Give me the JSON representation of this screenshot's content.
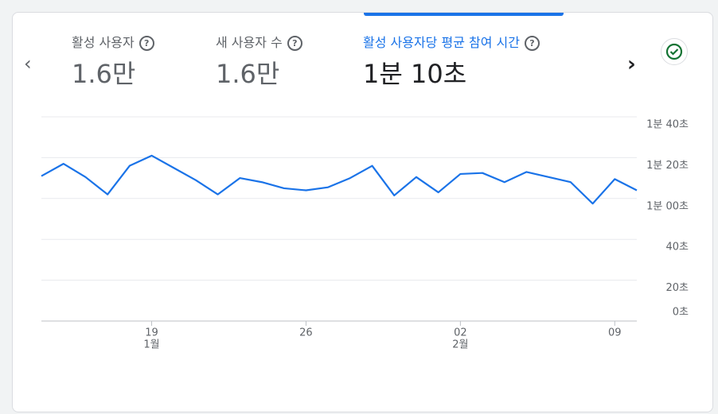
{
  "metrics": [
    {
      "label": "활성 사용자",
      "value": "1.6만"
    },
    {
      "label": "새 사용자 수",
      "value": "1.6만"
    },
    {
      "label": "활성 사용자당 평균 참여 시간",
      "value": "1분 10초"
    }
  ],
  "chart_data": {
    "type": "line",
    "categories": [
      null,
      null,
      null,
      null,
      null,
      "19",
      null,
      null,
      null,
      null,
      null,
      null,
      "26",
      null,
      null,
      null,
      null,
      null,
      null,
      "02",
      null,
      null,
      null,
      null,
      null,
      null,
      "09",
      null
    ],
    "category_groups": [
      null,
      null,
      null,
      null,
      null,
      "1월",
      null,
      null,
      null,
      null,
      null,
      null,
      null,
      null,
      null,
      null,
      null,
      null,
      null,
      "2월",
      null,
      null,
      null,
      null,
      null,
      null,
      null,
      null
    ],
    "series": [
      {
        "name": "활성 사용자당 평균 참여 시간",
        "color": "#1a73e8",
        "values": [
          71,
          77,
          70.5,
          62,
          76,
          81,
          75,
          69,
          62,
          70,
          68,
          65,
          64,
          65.5,
          70,
          76,
          61.5,
          70.5,
          63,
          72,
          72.5,
          68,
          73,
          70.5,
          68,
          57.5,
          69.5,
          64
        ]
      }
    ],
    "ylim": [
      0,
      100
    ],
    "yticks": [
      {
        "value": 0,
        "label": "0초"
      },
      {
        "value": 20,
        "label": "20초"
      },
      {
        "value": 40,
        "label": "40초"
      },
      {
        "value": 60,
        "label": "1분 00초"
      },
      {
        "value": 80,
        "label": "1분 20초"
      },
      {
        "value": 100,
        "label": "1분 40초"
      }
    ],
    "grid": true
  }
}
